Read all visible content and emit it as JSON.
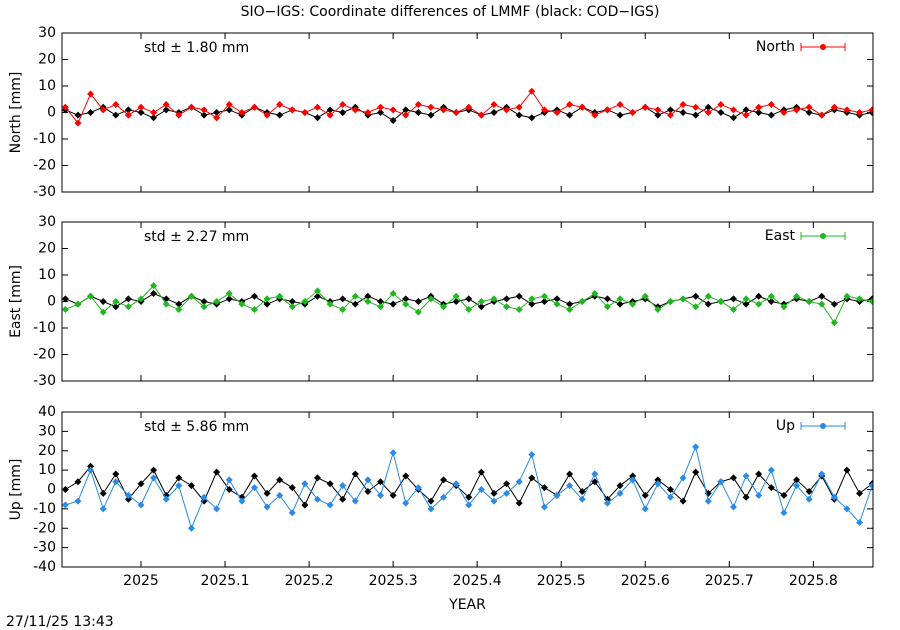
{
  "title": "SIO−IGS: Coordinate differences of LMMF (black: COD−IGS)",
  "timestamp": "27/11/25 13:43",
  "chart_data": [
    {
      "type": "line",
      "ylabel": "North [mm]",
      "annotation": "std ± 1.80 mm",
      "legend": "upper right",
      "xlim": [
        2024.906,
        2025.871
      ],
      "xticks": [
        2025,
        2025.1,
        2025.2,
        2025.3,
        2025.4,
        2025.5,
        2025.6,
        2025.7,
        2025.8
      ],
      "ylim": [
        -30,
        30
      ],
      "yticks": [
        -30,
        -20,
        -10,
        0,
        10,
        20,
        30
      ],
      "x": [
        2024.91,
        2024.925,
        2024.94,
        2024.955,
        2024.97,
        2024.985,
        2025.0,
        2025.015,
        2025.03,
        2025.045,
        2025.06,
        2025.075,
        2025.09,
        2025.105,
        2025.12,
        2025.135,
        2025.15,
        2025.165,
        2025.18,
        2025.195,
        2025.21,
        2025.225,
        2025.24,
        2025.255,
        2025.27,
        2025.285,
        2025.3,
        2025.315,
        2025.33,
        2025.345,
        2025.36,
        2025.375,
        2025.39,
        2025.405,
        2025.42,
        2025.435,
        2025.45,
        2025.465,
        2025.48,
        2025.495,
        2025.51,
        2025.525,
        2025.54,
        2025.555,
        2025.57,
        2025.585,
        2025.6,
        2025.615,
        2025.63,
        2025.645,
        2025.66,
        2025.675,
        2025.69,
        2025.705,
        2025.72,
        2025.735,
        2025.75,
        2025.765,
        2025.78,
        2025.795,
        2025.81,
        2025.825,
        2025.84,
        2025.855,
        2025.87
      ],
      "series": [
        {
          "color": "#000000",
          "values": [
            1,
            -1,
            0,
            2,
            -1,
            1,
            0,
            -2,
            1,
            0,
            2,
            -1,
            0,
            1,
            -1,
            2,
            0,
            -1,
            1,
            0,
            -2,
            1,
            0,
            2,
            -1,
            0,
            -3,
            1,
            0,
            -1,
            2,
            0,
            1,
            -1,
            0,
            2,
            -1,
            -2,
            0,
            1,
            -1,
            2,
            0,
            1,
            -1,
            0,
            2,
            -1,
            1,
            0,
            -1,
            2,
            0,
            -2,
            1,
            0,
            -1,
            1,
            2,
            0,
            -1,
            1,
            0,
            -1,
            0
          ]
        },
        {
          "name": "North",
          "color": "#ff0000",
          "values": [
            2,
            -4,
            7,
            1,
            3,
            -1,
            2,
            0,
            3,
            -1,
            2,
            1,
            -2,
            3,
            0,
            2,
            -1,
            3,
            1,
            0,
            2,
            -1,
            3,
            1,
            0,
            2,
            1,
            -1,
            3,
            2,
            1,
            0,
            2,
            -1,
            3,
            1,
            2,
            8,
            1,
            0,
            3,
            2,
            -1,
            1,
            3,
            0,
            2,
            1,
            -1,
            3,
            2,
            0,
            3,
            1,
            -1,
            2,
            3,
            0,
            1,
            2,
            -1,
            2,
            1,
            0,
            1
          ]
        }
      ]
    },
    {
      "type": "line",
      "ylabel": "East [mm]",
      "annotation": "std ± 2.27 mm",
      "legend": "upper right",
      "xlim": [
        2024.906,
        2025.871
      ],
      "xticks": [
        2025,
        2025.1,
        2025.2,
        2025.3,
        2025.4,
        2025.5,
        2025.6,
        2025.7,
        2025.8
      ],
      "ylim": [
        -30,
        30
      ],
      "yticks": [
        -30,
        -20,
        -10,
        0,
        10,
        20,
        30
      ],
      "x": [
        2024.91,
        2024.925,
        2024.94,
        2024.955,
        2024.97,
        2024.985,
        2025.0,
        2025.015,
        2025.03,
        2025.045,
        2025.06,
        2025.075,
        2025.09,
        2025.105,
        2025.12,
        2025.135,
        2025.15,
        2025.165,
        2025.18,
        2025.195,
        2025.21,
        2025.225,
        2025.24,
        2025.255,
        2025.27,
        2025.285,
        2025.3,
        2025.315,
        2025.33,
        2025.345,
        2025.36,
        2025.375,
        2025.39,
        2025.405,
        2025.42,
        2025.435,
        2025.45,
        2025.465,
        2025.48,
        2025.495,
        2025.51,
        2025.525,
        2025.54,
        2025.555,
        2025.57,
        2025.585,
        2025.6,
        2025.615,
        2025.63,
        2025.645,
        2025.66,
        2025.675,
        2025.69,
        2025.705,
        2025.72,
        2025.735,
        2025.75,
        2025.765,
        2025.78,
        2025.795,
        2025.81,
        2025.825,
        2025.84,
        2025.855,
        2025.87
      ],
      "series": [
        {
          "color": "#000000",
          "values": [
            1,
            -1,
            2,
            0,
            -2,
            1,
            0,
            3,
            1,
            -1,
            2,
            0,
            -1,
            1,
            0,
            2,
            -1,
            1,
            0,
            -1,
            2,
            0,
            1,
            -1,
            2,
            0,
            -1,
            1,
            0,
            2,
            -1,
            0,
            1,
            -2,
            0,
            1,
            2,
            -1,
            0,
            1,
            -1,
            0,
            2,
            1,
            -1,
            0,
            1,
            -2,
            0,
            1,
            2,
            -1,
            0,
            1,
            -1,
            2,
            0,
            -1,
            1,
            0,
            2,
            -1,
            1,
            0,
            1
          ]
        },
        {
          "name": "East",
          "color": "#1fb81f",
          "values": [
            -3,
            -1,
            2,
            -4,
            0,
            -2,
            1,
            6,
            -1,
            -3,
            2,
            -2,
            0,
            3,
            -1,
            -3,
            1,
            2,
            -2,
            0,
            4,
            -1,
            -3,
            2,
            0,
            -2,
            3,
            -1,
            -4,
            1,
            -2,
            2,
            -3,
            0,
            1,
            -2,
            -3,
            1,
            2,
            -1,
            -3,
            0,
            3,
            -2,
            1,
            -1,
            2,
            -3,
            0,
            1,
            -2,
            2,
            0,
            -3,
            1,
            -1,
            2,
            -2,
            2,
            0,
            -1,
            -8,
            2,
            1,
            0
          ]
        }
      ]
    },
    {
      "type": "line",
      "ylabel": "Up [mm]",
      "annotation": "std ± 5.86 mm",
      "legend": "upper right",
      "xlabel": "YEAR",
      "xlim": [
        2024.906,
        2025.871
      ],
      "xticks": [
        2025,
        2025.1,
        2025.2,
        2025.3,
        2025.4,
        2025.5,
        2025.6,
        2025.7,
        2025.8
      ],
      "ylim": [
        -40,
        40
      ],
      "yticks": [
        -40,
        -30,
        -20,
        -10,
        0,
        10,
        20,
        30,
        40
      ],
      "x": [
        2024.91,
        2024.925,
        2024.94,
        2024.955,
        2024.97,
        2024.985,
        2025.0,
        2025.015,
        2025.03,
        2025.045,
        2025.06,
        2025.075,
        2025.09,
        2025.105,
        2025.12,
        2025.135,
        2025.15,
        2025.165,
        2025.18,
        2025.195,
        2025.21,
        2025.225,
        2025.24,
        2025.255,
        2025.27,
        2025.285,
        2025.3,
        2025.315,
        2025.33,
        2025.345,
        2025.36,
        2025.375,
        2025.39,
        2025.405,
        2025.42,
        2025.435,
        2025.45,
        2025.465,
        2025.48,
        2025.495,
        2025.51,
        2025.525,
        2025.54,
        2025.555,
        2025.57,
        2025.585,
        2025.6,
        2025.615,
        2025.63,
        2025.645,
        2025.66,
        2025.675,
        2025.69,
        2025.705,
        2025.72,
        2025.735,
        2025.75,
        2025.765,
        2025.78,
        2025.795,
        2025.81,
        2025.825,
        2025.84,
        2025.855,
        2025.87
      ],
      "series": [
        {
          "color": "#000000",
          "values": [
            0,
            4,
            12,
            -2,
            8,
            -5,
            3,
            10,
            -3,
            6,
            2,
            -6,
            9,
            0,
            -4,
            7,
            -2,
            5,
            1,
            -8,
            6,
            3,
            -5,
            8,
            -1,
            4,
            -3,
            7,
            0,
            -6,
            5,
            2,
            -4,
            9,
            -2,
            3,
            -7,
            6,
            1,
            -3,
            8,
            -1,
            4,
            -5,
            2,
            7,
            -3,
            5,
            0,
            -6,
            9,
            -2,
            4,
            6,
            -4,
            8,
            1,
            -3,
            5,
            -1,
            7,
            -5,
            10,
            -2,
            3
          ]
        },
        {
          "name": "Up",
          "color": "#2a8be6",
          "values": [
            -8,
            -6,
            10,
            -10,
            4,
            -3,
            -8,
            6,
            -5,
            2,
            -20,
            -4,
            -10,
            5,
            -6,
            1,
            -9,
            -3,
            -12,
            3,
            -5,
            -8,
            2,
            -6,
            5,
            -3,
            19,
            -7,
            1,
            -10,
            -4,
            3,
            -8,
            0,
            -6,
            -2,
            4,
            18,
            -9,
            -3,
            2,
            -5,
            8,
            -7,
            -2,
            5,
            -10,
            3,
            -4,
            6,
            22,
            -6,
            4,
            -9,
            7,
            -3,
            10,
            -12,
            2,
            -5,
            8,
            -4,
            -10,
            -17,
            2
          ]
        }
      ]
    }
  ]
}
